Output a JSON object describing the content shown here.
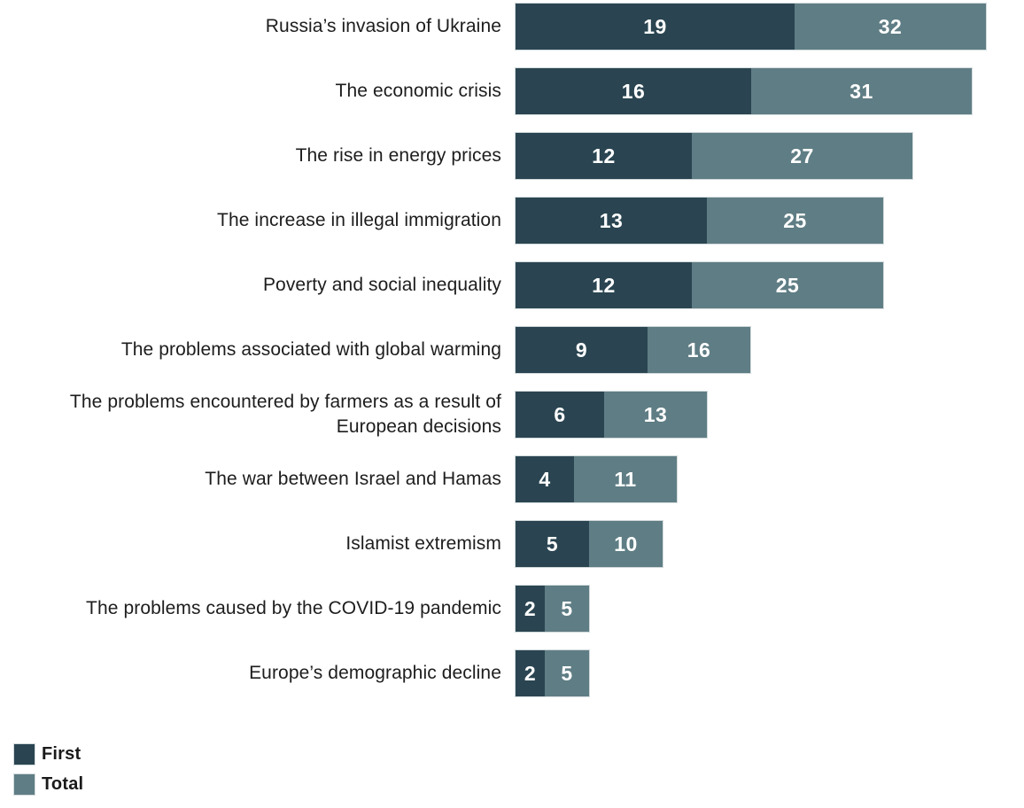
{
  "chart_data": {
    "type": "bar",
    "orientation": "horizontal",
    "stacked": true,
    "title": "",
    "categories": [
      "Russia’s invasion of Ukraine",
      "The economic crisis",
      "The rise in energy prices",
      "The increase in illegal immigration",
      "Poverty and social inequality",
      "The problems associated with global warming",
      "The problems encountered by farmers as a result of\nEuropean decisions",
      "The war between Israel and Hamas",
      "Islamist extremism",
      "The problems caused by the COVID-19 pandemic",
      "Europe’s demographic decline"
    ],
    "series": [
      {
        "name": "First",
        "color": "#2a4551",
        "values": [
          19,
          16,
          12,
          13,
          12,
          9,
          6,
          4,
          5,
          2,
          2
        ]
      },
      {
        "name": "Total",
        "color": "#5f7d84",
        "values": [
          32,
          31,
          27,
          25,
          25,
          16,
          13,
          11,
          10,
          5,
          5
        ]
      }
    ],
    "xlim": [
      0,
      32
    ],
    "grid": "off",
    "legend_position": "bottom-left",
    "value_labels": "inside-white",
    "segment_rule": "light segment width equals Total minus First; label shows Total"
  }
}
